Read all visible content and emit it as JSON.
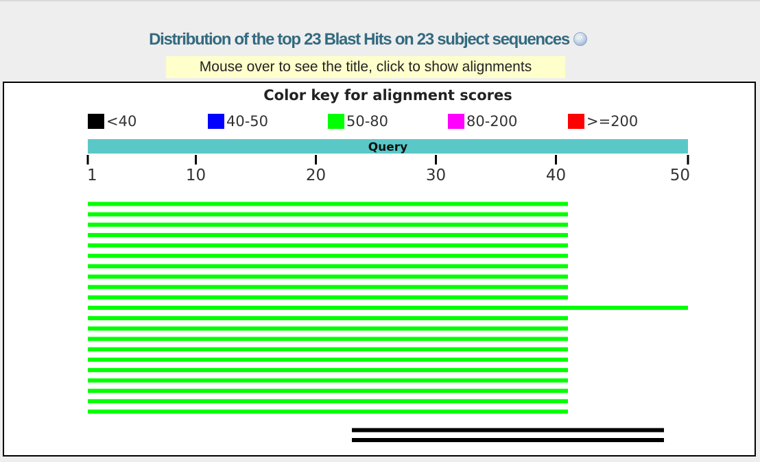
{
  "header": {
    "title": "Distribution of the top 23 Blast Hits on 23 subject sequences",
    "help_icon_glyph": "?",
    "hint": "Mouse over to see the title, click to show alignments"
  },
  "chart_data": {
    "type": "bar",
    "title": "Color key for alignment scores",
    "legend_placement": "top",
    "legend": [
      {
        "label": "<40",
        "color": "#000000"
      },
      {
        "label": "40-50",
        "color": "#0000ff"
      },
      {
        "label": "50-80",
        "color": "#00ff00"
      },
      {
        "label": "80-200",
        "color": "#ff00ff"
      },
      {
        "label": ">=200",
        "color": "#ff0000"
      }
    ],
    "query": {
      "label": "Query",
      "color": "#5bc8c8",
      "start": 1,
      "end": 50
    },
    "x_axis": {
      "min": 1,
      "max": 50,
      "ticks": [
        1,
        10,
        20,
        30,
        40,
        50
      ]
    },
    "hits": [
      {
        "start": 1,
        "end": 40,
        "color": "#00ff00"
      },
      {
        "start": 1,
        "end": 40,
        "color": "#00ff00"
      },
      {
        "start": 1,
        "end": 40,
        "color": "#00ff00"
      },
      {
        "start": 1,
        "end": 40,
        "color": "#00ff00"
      },
      {
        "start": 1,
        "end": 40,
        "color": "#00ff00"
      },
      {
        "start": 1,
        "end": 40,
        "color": "#00ff00"
      },
      {
        "start": 1,
        "end": 40,
        "color": "#00ff00"
      },
      {
        "start": 1,
        "end": 40,
        "color": "#00ff00"
      },
      {
        "start": 1,
        "end": 40,
        "color": "#00ff00"
      },
      {
        "start": 1,
        "end": 40,
        "color": "#00ff00"
      },
      {
        "start": 1,
        "end": 50,
        "color": "#00ff00"
      },
      {
        "start": 1,
        "end": 40,
        "color": "#00ff00"
      },
      {
        "start": 1,
        "end": 40,
        "color": "#00ff00"
      },
      {
        "start": 1,
        "end": 40,
        "color": "#00ff00"
      },
      {
        "start": 1,
        "end": 40,
        "color": "#00ff00"
      },
      {
        "start": 1,
        "end": 40,
        "color": "#00ff00"
      },
      {
        "start": 1,
        "end": 40,
        "color": "#00ff00"
      },
      {
        "start": 1,
        "end": 40,
        "color": "#00ff00"
      },
      {
        "start": 1,
        "end": 40,
        "color": "#00ff00"
      },
      {
        "start": 1,
        "end": 40,
        "color": "#00ff00"
      },
      {
        "start": 1,
        "end": 40,
        "color": "#00ff00"
      },
      {
        "start": 23,
        "end": 48,
        "color": "#000000"
      },
      {
        "start": 23,
        "end": 48,
        "color": "#000000"
      }
    ]
  }
}
